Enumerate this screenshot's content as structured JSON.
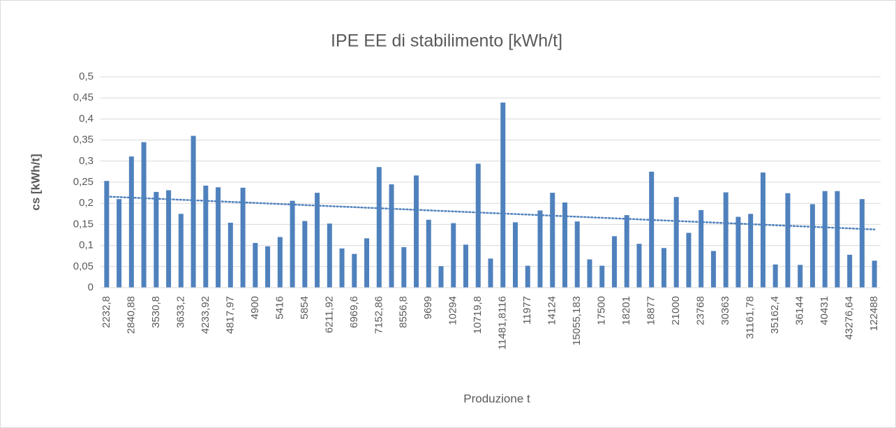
{
  "chart_data": {
    "type": "bar",
    "title": "IPE EE di stabilimento [kWh/t]",
    "x_label": "Produzione t",
    "y_label": "cs [kWh/t]",
    "categories": [
      "2232,8",
      null,
      "2840,88",
      null,
      "3530,8",
      null,
      "3633,2",
      null,
      "4233,92",
      null,
      "4817,97",
      null,
      "4900",
      null,
      "5416",
      null,
      "5854",
      null,
      "6211,92",
      null,
      "6969,6",
      null,
      "7152,86",
      null,
      "8556,8",
      null,
      "9699",
      null,
      "10294",
      null,
      "10719,8",
      null,
      "11481,8116",
      null,
      "11977",
      null,
      "14124",
      null,
      "15055,183",
      null,
      "17500",
      null,
      "18201",
      null,
      "18877",
      null,
      "21000",
      null,
      "23768",
      null,
      "30363",
      null,
      "31161,78",
      null,
      "35162,4",
      null,
      "36144",
      null,
      "40431",
      null,
      "43276,64",
      null,
      "122488"
    ],
    "values": [
      0.253,
      0.21,
      0.311,
      0.345,
      0.227,
      0.231,
      0.175,
      0.36,
      0.242,
      0.238,
      0.154,
      0.237,
      0.106,
      0.098,
      0.12,
      0.206,
      0.158,
      0.225,
      0.152,
      0.093,
      0.08,
      0.117,
      0.286,
      0.245,
      0.096,
      0.266,
      0.161,
      0.051,
      0.153,
      0.102,
      0.294,
      0.069,
      0.439,
      0.155,
      0.052,
      0.183,
      0.225,
      0.202,
      0.157,
      0.067,
      0.052,
      0.122,
      0.172,
      0.104,
      0.275,
      0.094,
      0.215,
      0.13,
      0.184,
      0.087,
      0.226,
      0.168,
      0.175,
      0.273,
      0.055,
      0.224,
      0.054,
      0.198,
      0.229,
      0.229,
      0.078,
      0.21,
      0.064
    ],
    "color": "#4f81bd",
    "trendline": {
      "start": 0.216,
      "end": 0.138
    },
    "ylim": [
      0,
      0.5
    ],
    "yticks": [
      0,
      {
        "value": 0.05,
        "label": "0,05"
      },
      {
        "value": 0.1,
        "label": "0,1"
      },
      {
        "value": 0.15,
        "label": "0,15"
      },
      {
        "value": 0.2,
        "label": "0,2"
      },
      {
        "value": 0.25,
        "label": "0,25"
      },
      {
        "value": 0.3,
        "label": "0,3"
      },
      {
        "value": 0.35,
        "label": "0,35"
      },
      {
        "value": 0.4,
        "label": "0,4"
      },
      {
        "value": 0.45,
        "label": "0,45"
      },
      {
        "value": 0.5,
        "label": "0,5"
      }
    ],
    "grid": true
  }
}
